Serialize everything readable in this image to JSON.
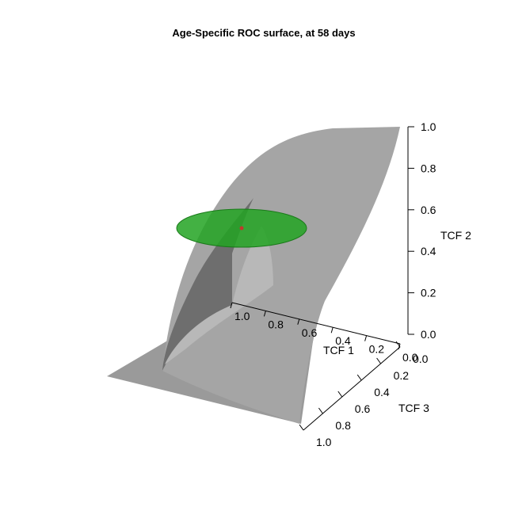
{
  "chart_data": {
    "type": "surface3d",
    "title": "Age-Specific ROC surface, at 58 days",
    "axes": {
      "x": {
        "label": "TCF 1",
        "range": [
          0,
          1
        ],
        "ticks": [
          "1.0",
          "0.8",
          "0.6",
          "0.4",
          "0.2",
          "0.0"
        ]
      },
      "y": {
        "label": "TCF 2",
        "range": [
          0,
          1
        ],
        "ticks": [
          "0.0",
          "0.2",
          "0.4",
          "0.6",
          "0.8",
          "1.0"
        ]
      },
      "z": {
        "label": "TCF 3",
        "range": [
          0,
          1
        ],
        "ticks": [
          "0.0",
          "0.2",
          "0.4",
          "0.6",
          "0.8",
          "1.0"
        ]
      }
    },
    "surface": {
      "name": "ROC surface",
      "color": "#9a9a9a"
    },
    "confidence_ellipse": {
      "color": "#2fa82f",
      "center_tcf2": 0.5
    },
    "point": {
      "color": "#c0392b"
    }
  }
}
